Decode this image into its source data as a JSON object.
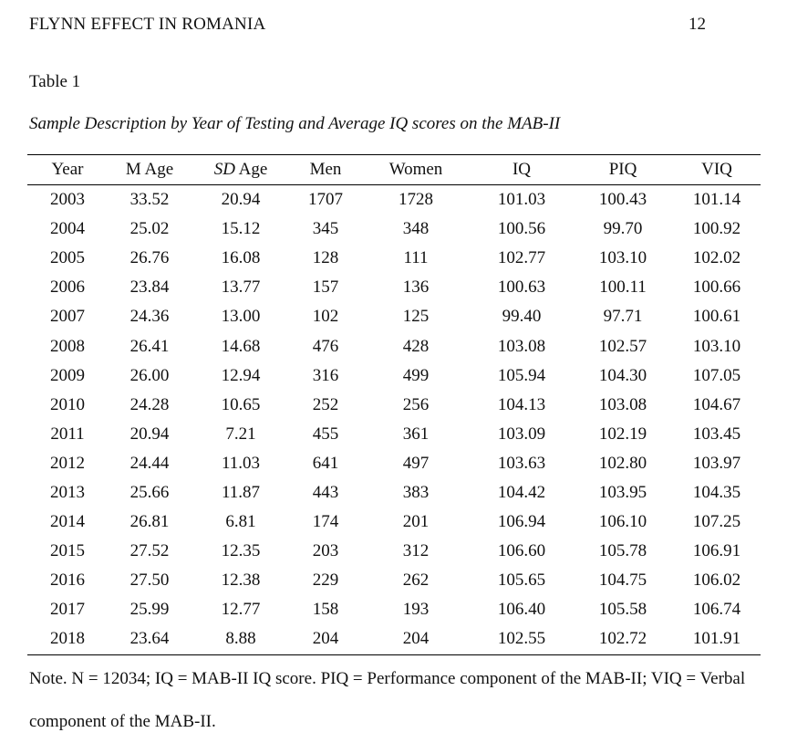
{
  "running_head": "FLYNN EFFECT IN ROMANIA",
  "page_number": "12",
  "table_label": "Table 1",
  "table_title": "Sample Description by Year of Testing and Average IQ scores on the MAB-II",
  "table": {
    "headers": {
      "year": "Year",
      "m_age": "M Age",
      "sd_italic": "SD",
      "sd_rest": " Age",
      "men": "Men",
      "women": "Women",
      "iq": "IQ",
      "piq": "PIQ",
      "viq": "VIQ"
    },
    "rows": [
      [
        "2003",
        "33.52",
        "20.94",
        "1707",
        "1728",
        "101.03",
        "100.43",
        "101.14"
      ],
      [
        "2004",
        "25.02",
        "15.12",
        "345",
        "348",
        "100.56",
        "99.70",
        "100.92"
      ],
      [
        "2005",
        "26.76",
        "16.08",
        "128",
        "111",
        "102.77",
        "103.10",
        "102.02"
      ],
      [
        "2006",
        "23.84",
        "13.77",
        "157",
        "136",
        "100.63",
        "100.11",
        "100.66"
      ],
      [
        "2007",
        "24.36",
        "13.00",
        "102",
        "125",
        "99.40",
        "97.71",
        "100.61"
      ],
      [
        "2008",
        "26.41",
        "14.68",
        "476",
        "428",
        "103.08",
        "102.57",
        "103.10"
      ],
      [
        "2009",
        "26.00",
        "12.94",
        "316",
        "499",
        "105.94",
        "104.30",
        "107.05"
      ],
      [
        "2010",
        "24.28",
        "10.65",
        "252",
        "256",
        "104.13",
        "103.08",
        "104.67"
      ],
      [
        "2011",
        "20.94",
        "7.21",
        "455",
        "361",
        "103.09",
        "102.19",
        "103.45"
      ],
      [
        "2012",
        "24.44",
        "11.03",
        "641",
        "497",
        "103.63",
        "102.80",
        "103.97"
      ],
      [
        "2013",
        "25.66",
        "11.87",
        "443",
        "383",
        "104.42",
        "103.95",
        "104.35"
      ],
      [
        "2014",
        "26.81",
        "6.81",
        "174",
        "201",
        "106.94",
        "106.10",
        "107.25"
      ],
      [
        "2015",
        "27.52",
        "12.35",
        "203",
        "312",
        "106.60",
        "105.78",
        "106.91"
      ],
      [
        "2016",
        "27.50",
        "12.38",
        "229",
        "262",
        "105.65",
        "104.75",
        "106.02"
      ],
      [
        "2017",
        "25.99",
        "12.77",
        "158",
        "193",
        "106.40",
        "105.58",
        "106.74"
      ],
      [
        "2018",
        "23.64",
        "8.88",
        "204",
        "204",
        "102.55",
        "102.72",
        "101.91"
      ]
    ]
  },
  "note": "Note. N = 12034; IQ = MAB-II IQ score. PIQ = Performance component of the MAB-II; VIQ = Verbal component of the MAB-II."
}
